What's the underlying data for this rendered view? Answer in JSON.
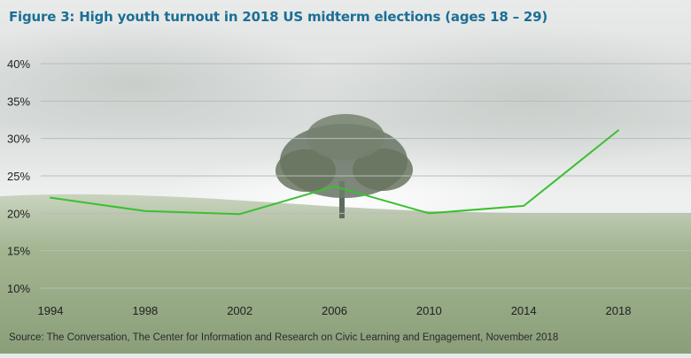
{
  "title": "Figure 3: High youth turnout in 2018 US midterm elections (ages 18 – 29)",
  "source": "Source: The Conversation, The Center for Information and Research on Civic Learning and Engagement, November 2018",
  "colors": {
    "title": "#1b6f96",
    "line": "#3bbf2f",
    "grid": "#b9bcbc",
    "sky": "#eceeed",
    "grass": "#8fa67a",
    "tree": "#6e7a6c"
  },
  "chart_data": {
    "type": "line",
    "title": "Figure 3: High youth turnout in 2018 US midterm elections (ages 18 – 29)",
    "xlabel": "",
    "ylabel": "",
    "x": [
      "1994",
      "1998",
      "2002",
      "2006",
      "2010",
      "2014",
      "2018"
    ],
    "series": [
      {
        "values": [
          22.1,
          20.3,
          19.9,
          23.6,
          20.0,
          21.0,
          31.1
        ]
      }
    ],
    "ylim": [
      10,
      40
    ],
    "yticks": [
      "10%",
      "15%",
      "20%",
      "25%",
      "30%",
      "35%",
      "40%"
    ],
    "grid": true,
    "legend": "none"
  }
}
